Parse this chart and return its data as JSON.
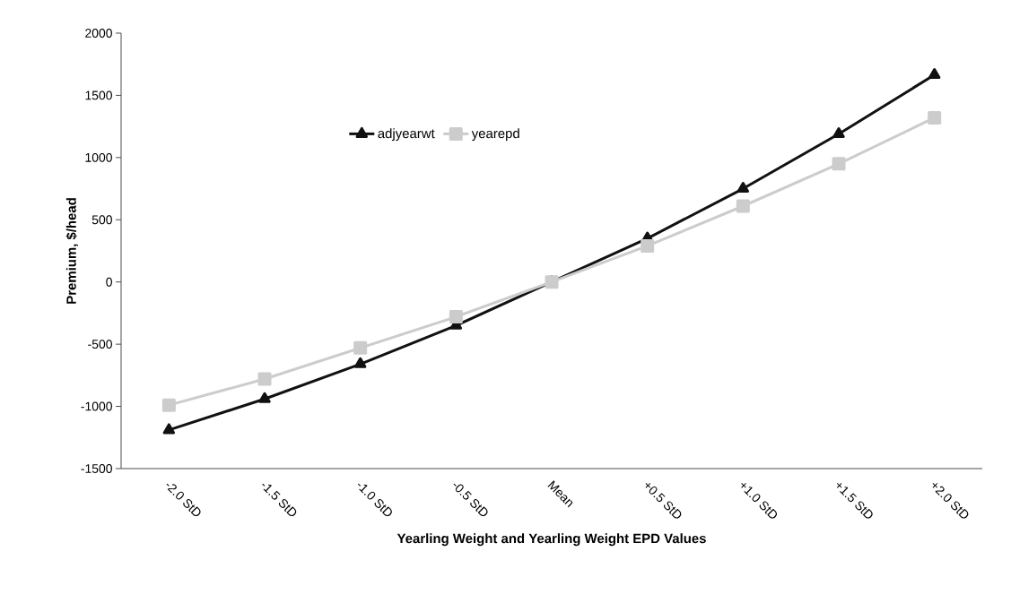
{
  "chart_data": {
    "type": "line",
    "xlabel": "Yearling Weight and Yearling Weight EPD Values",
    "ylabel": "Premium, $/head",
    "categories": [
      "-2.0 StD",
      "-1.5 StD",
      "-1.0 StD",
      "-0.5 StD",
      "Mean",
      "+0.5 StD",
      "+1.0 StD",
      "+1.5 StD",
      "+2.0 StD"
    ],
    "series": [
      {
        "name": "adjyearwt",
        "color": "#111111",
        "marker": "triangle",
        "values": [
          -1190,
          -940,
          -660,
          -350,
          0,
          350,
          750,
          1190,
          1665
        ]
      },
      {
        "name": "yearepd",
        "color": "#cccccc",
        "marker": "square",
        "values": [
          -990,
          -780,
          -530,
          -280,
          0,
          290,
          610,
          950,
          1320
        ]
      }
    ],
    "ylim": [
      -1500,
      2000
    ],
    "yticks": [
      -1500,
      -1000,
      -500,
      0,
      500,
      1000,
      1500,
      2000
    ],
    "grid": false,
    "legend": "top left",
    "line_style": "solid"
  }
}
